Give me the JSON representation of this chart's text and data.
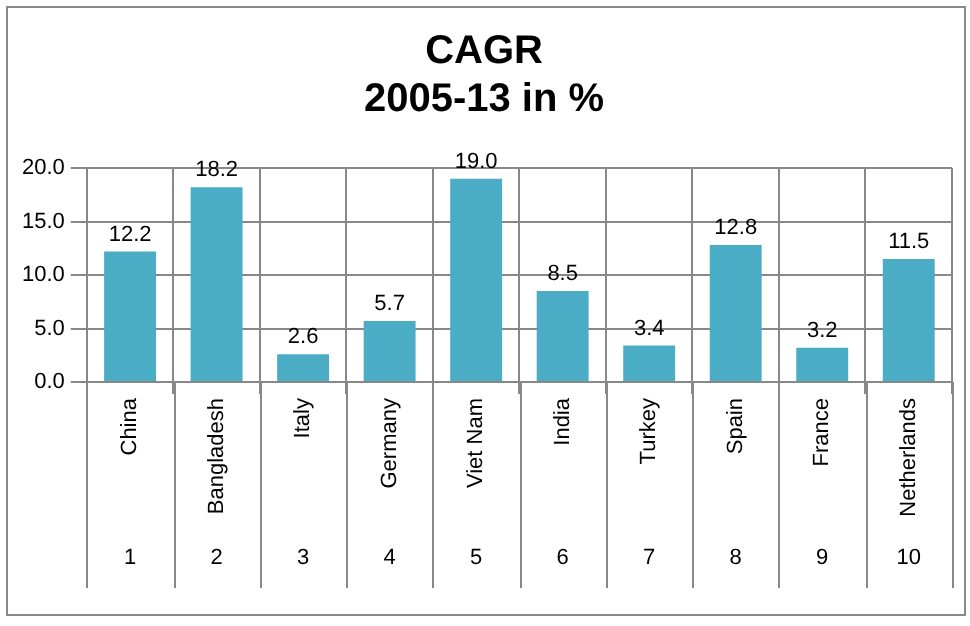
{
  "chart_data": {
    "type": "bar",
    "title": [
      "CAGR",
      "2005-13 in %"
    ],
    "categories": [
      "China",
      "Bangladesh",
      "Italy",
      "Germany",
      "Viet Nam",
      "India",
      "Turkey",
      "Spain",
      "France",
      "Netherlands"
    ],
    "values": [
      12.2,
      18.2,
      2.6,
      5.7,
      19.0,
      8.5,
      3.4,
      12.8,
      3.2,
      11.5
    ],
    "value_labels": [
      "12.2",
      "18.2",
      "2.6",
      "5.7",
      "19.0",
      "8.5",
      "3.4",
      "12.8",
      "3.2",
      "11.5"
    ],
    "color": "#4bacc6",
    "annotations": [
      "1",
      "2",
      "3",
      "4",
      "5",
      "6",
      "7",
      "8",
      "9",
      "10"
    ],
    "ylim": [
      0,
      20
    ],
    "yticks": [
      {
        "value": 0,
        "label": "0.0"
      },
      {
        "value": 5,
        "label": "5.0"
      },
      {
        "value": 10,
        "label": "10.0"
      },
      {
        "value": 15,
        "label": "15.0"
      },
      {
        "value": 20,
        "label": "20.0"
      }
    ],
    "grid": true,
    "legend": false
  }
}
